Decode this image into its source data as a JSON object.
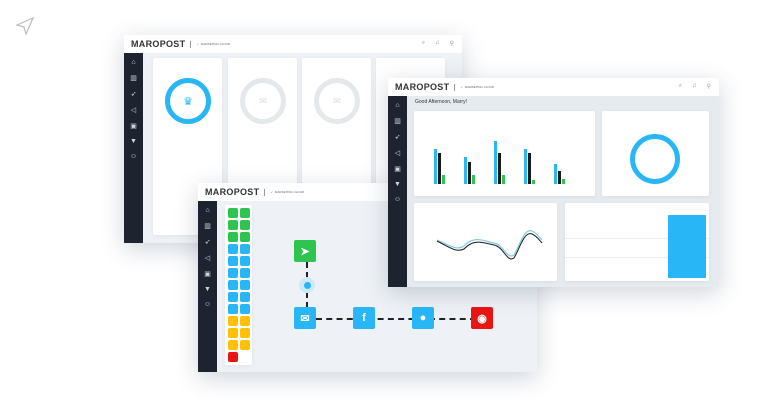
{
  "brand": {
    "logo": "MAROPOST",
    "product": "MARKETING CLOUD"
  },
  "header_icons": [
    "search-icon",
    "bell-icon",
    "user-icon"
  ],
  "sidebar_icons": [
    "home-icon",
    "chart-icon",
    "rocket-icon",
    "megaphone-icon",
    "briefcase-icon",
    "funnel-icon",
    "user-icon"
  ],
  "dashboard": {
    "greeting": "Good Afternoon, Marry!"
  },
  "colors": {
    "accent": "#29b6f6",
    "sidebar": "#1d2430",
    "green": "#2ec44f",
    "yellow": "#ffc107",
    "red": "#e81515",
    "black": "#1a1a1a"
  },
  "journey": {
    "palette": [
      "green",
      "green",
      "green",
      "blue",
      "blue",
      "blue",
      "blue",
      "blue",
      "blue",
      "yellow",
      "yellow",
      "yellow",
      "red"
    ],
    "nodes": [
      "cursor-icon",
      "email-icon",
      "facebook-icon",
      "chat-icon",
      "stop-icon"
    ]
  }
}
